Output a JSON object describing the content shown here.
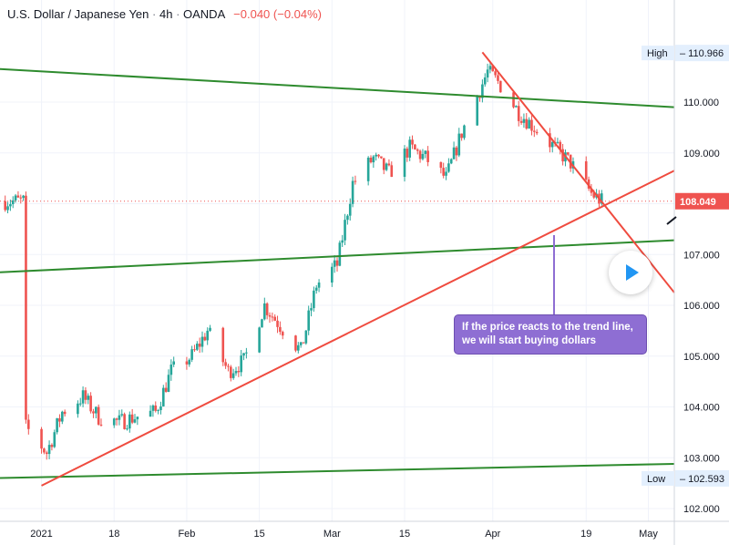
{
  "header": {
    "symbol": "U.S. Dollar / Japanese Yen",
    "interval": "4h",
    "source": "OANDA",
    "change": "−0.040 (−0.04%)"
  },
  "annotation": {
    "text": "If the price reacts to the trend line, we will start buying dollars"
  },
  "price_labels": {
    "high_label": "High",
    "high_value": "110.966",
    "current_value": "108.049",
    "low_label": "Low",
    "low_value": "102.593"
  },
  "colors": {
    "up": "#26a69a",
    "down": "#ef5350",
    "trend_green": "#2e8b2e",
    "trend_red": "#ef4b3f",
    "current_price_bg": "#ef5350",
    "callout_bg": "#8e6ed3"
  },
  "chart_data": {
    "type": "candlestick",
    "x_tick_labels": [
      "2021",
      "18",
      "Feb",
      "15",
      "Mar",
      "15",
      "Apr",
      "19",
      "May"
    ],
    "y_tick_labels": [
      "102.000",
      "103.000",
      "104.000",
      "105.000",
      "106.000",
      "107.000",
      "108.000",
      "109.000",
      "110.000"
    ],
    "ylim": [
      101.9,
      111.8
    ],
    "grid": true,
    "close_series": {
      "name": "",
      "dates": [
        "2021-01-01",
        "2021-01-05",
        "2021-01-08",
        "2021-01-12",
        "2021-01-15",
        "2021-01-19",
        "2021-01-22",
        "2021-01-26",
        "2021-01-29",
        "2021-02-02",
        "2021-02-05",
        "2021-02-09",
        "2021-02-12",
        "2021-02-16",
        "2021-02-19",
        "2021-02-23",
        "2021-02-26",
        "2021-03-02",
        "2021-03-05",
        "2021-03-09",
        "2021-03-12",
        "2021-03-16",
        "2021-03-19",
        "2021-03-23",
        "2021-03-26",
        "2021-03-31",
        "2021-04-02",
        "2021-04-06",
        "2021-04-09",
        "2021-04-13",
        "2021-04-16",
        "2021-04-20",
        "2021-04-22"
      ],
      "values": [
        103.6,
        103.1,
        103.9,
        104.2,
        103.8,
        103.7,
        103.8,
        103.9,
        104.7,
        105.0,
        105.5,
        104.7,
        104.9,
        106.0,
        105.6,
        105.1,
        106.4,
        106.8,
        108.4,
        108.9,
        108.6,
        109.1,
        108.9,
        108.5,
        109.4,
        110.6,
        110.4,
        109.8,
        109.5,
        109.1,
        108.8,
        108.2,
        108.05
      ]
    },
    "trend_lines": [
      {
        "color": "green",
        "points": [
          [
            "2020-12-27",
            110.65
          ],
          [
            "2021-05-06",
            109.9
          ]
        ]
      },
      {
        "color": "green",
        "points": [
          [
            "2020-12-27",
            106.65
          ],
          [
            "2021-05-06",
            107.28
          ]
        ]
      },
      {
        "color": "green",
        "points": [
          [
            "2020-12-27",
            102.6
          ],
          [
            "2021-05-06",
            102.88
          ]
        ]
      },
      {
        "color": "red",
        "points": [
          [
            "2021-01-04",
            102.45
          ],
          [
            "2021-05-06",
            108.65
          ]
        ]
      },
      {
        "color": "red",
        "points": [
          [
            "2021-03-30",
            110.98
          ],
          [
            "2021-05-06",
            106.25
          ]
        ]
      }
    ],
    "high": 110.966,
    "low": 102.593,
    "current": 108.049
  }
}
